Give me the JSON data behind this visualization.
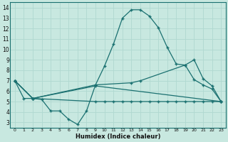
{
  "title": "",
  "xlabel": "Humidex (Indice chaleur)",
  "ylabel": "",
  "bg_color": "#c8e8e0",
  "line_color": "#1a7070",
  "grid_color": "#b0d8d0",
  "xlim": [
    -0.5,
    23.5
  ],
  "ylim": [
    2.5,
    14.5
  ],
  "xticks": [
    0,
    1,
    2,
    3,
    4,
    5,
    6,
    7,
    8,
    9,
    10,
    11,
    12,
    13,
    14,
    15,
    16,
    17,
    18,
    19,
    20,
    21,
    22,
    23
  ],
  "yticks": [
    3,
    4,
    5,
    6,
    7,
    8,
    9,
    10,
    11,
    12,
    13,
    14
  ],
  "line1_x": [
    0,
    1,
    2,
    3,
    4,
    5,
    6,
    7,
    8,
    9,
    10,
    11,
    12,
    13,
    14,
    15,
    16,
    17,
    18,
    19,
    20,
    21,
    22,
    23
  ],
  "line1_y": [
    7.0,
    5.3,
    5.3,
    5.2,
    4.1,
    4.1,
    3.3,
    2.8,
    4.1,
    6.6,
    8.4,
    10.5,
    13.0,
    13.8,
    13.8,
    13.2,
    12.1,
    10.2,
    8.6,
    8.5,
    7.1,
    6.6,
    6.2,
    5.0
  ],
  "line2_x": [
    0,
    2,
    9,
    13,
    14,
    19,
    20,
    21,
    22,
    23
  ],
  "line2_y": [
    7.0,
    5.3,
    6.6,
    6.8,
    7.0,
    8.5,
    9.0,
    7.2,
    6.5,
    5.0
  ],
  "line3_x": [
    0,
    2,
    9,
    23
  ],
  "line3_y": [
    7.0,
    5.3,
    6.5,
    5.0
  ],
  "line4_x": [
    0,
    2,
    9,
    10,
    11,
    12,
    13,
    14,
    15,
    16,
    17,
    18,
    19,
    20,
    21,
    22,
    23
  ],
  "line4_y": [
    7.0,
    5.3,
    5.0,
    5.0,
    5.0,
    5.0,
    5.0,
    5.0,
    5.0,
    5.0,
    5.0,
    5.0,
    5.0,
    5.0,
    5.0,
    5.0,
    5.0
  ]
}
